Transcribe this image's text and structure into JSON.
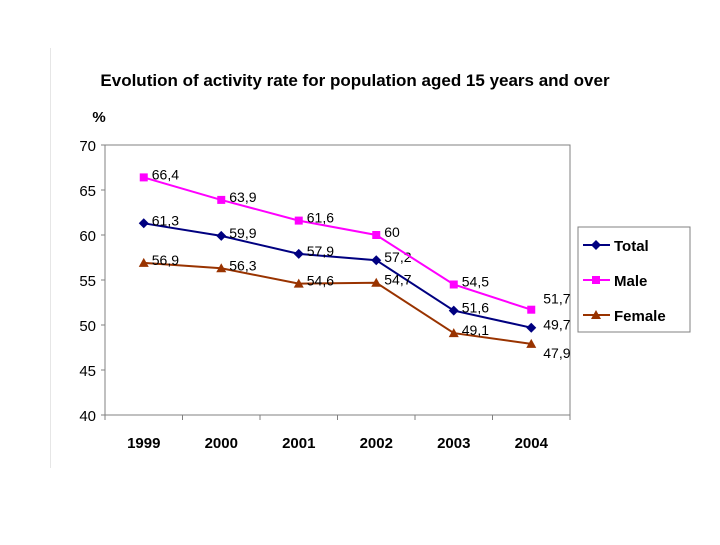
{
  "chart_data": {
    "type": "line",
    "title": "Evolution of activity rate for population aged 15 years and over",
    "ylabel": "%",
    "xlabel": "",
    "categories": [
      "1999",
      "2000",
      "2001",
      "2002",
      "2003",
      "2004"
    ],
    "ylim": [
      40,
      70
    ],
    "yticks": [
      "40",
      "45",
      "50",
      "55",
      "60",
      "65",
      "70"
    ],
    "grid": false,
    "legend_position": "right",
    "series": [
      {
        "name": "Total",
        "marker": "diamond",
        "color": "#000080",
        "values": [
          61.3,
          59.9,
          57.9,
          57.2,
          51.6,
          49.7
        ],
        "labels": [
          "61,3",
          "59,9",
          "57,9",
          "57,2",
          "51,6",
          "49,7"
        ]
      },
      {
        "name": "Male",
        "marker": "square",
        "color": "#ff00ff",
        "values": [
          66.4,
          63.9,
          61.6,
          60,
          54.5,
          51.7
        ],
        "labels": [
          "66,4",
          "63,9",
          "61,6",
          "60",
          "54,5",
          "51,7"
        ]
      },
      {
        "name": "Female",
        "marker": "triangle",
        "color": "#993300",
        "values": [
          56.9,
          56.3,
          54.6,
          54.7,
          49.1,
          47.9
        ],
        "labels": [
          "56,9",
          "56,3",
          "54,6",
          "54,7",
          "49,1",
          "47,9"
        ]
      }
    ]
  }
}
